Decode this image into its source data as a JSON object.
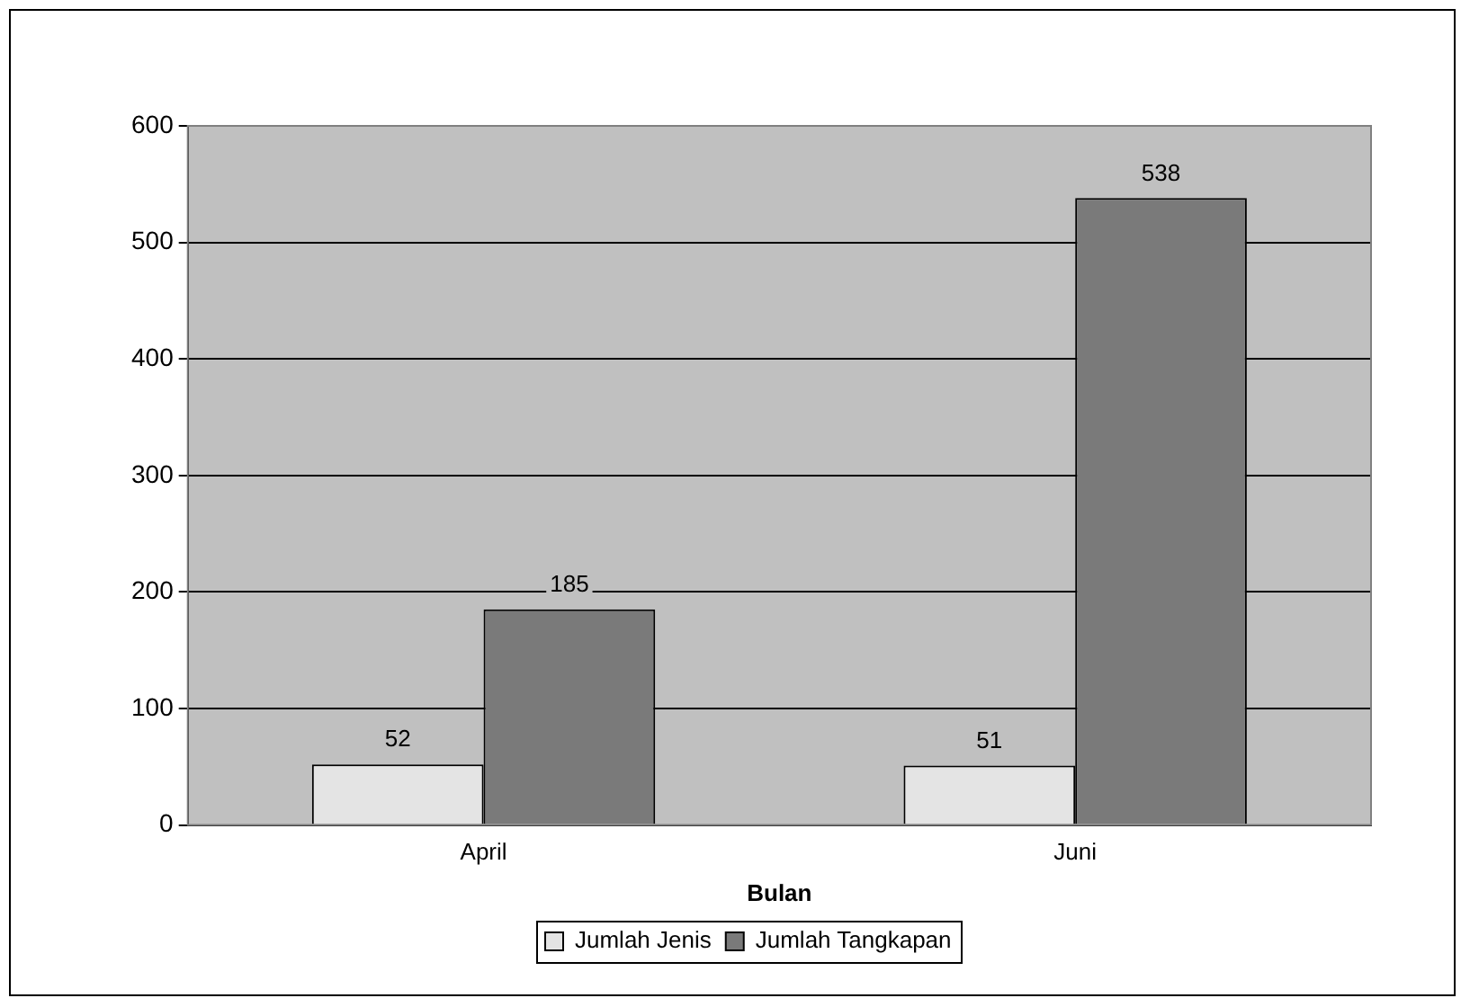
{
  "chart_data": {
    "type": "bar",
    "xlabel": "Bulan",
    "categories": [
      "April",
      "Juni"
    ],
    "series": [
      {
        "name": "Jumlah Jenis",
        "color": "#e4e4e4",
        "values": [
          52,
          51
        ]
      },
      {
        "name": "Jumlah Tangkapan",
        "color": "#7a7a7a",
        "values": [
          185,
          538
        ]
      }
    ],
    "ylim": [
      0,
      600
    ],
    "yticks": [
      0,
      100,
      200,
      300,
      400,
      500,
      600
    ],
    "grid": "y",
    "legend": "bottom",
    "data_labels": true
  }
}
